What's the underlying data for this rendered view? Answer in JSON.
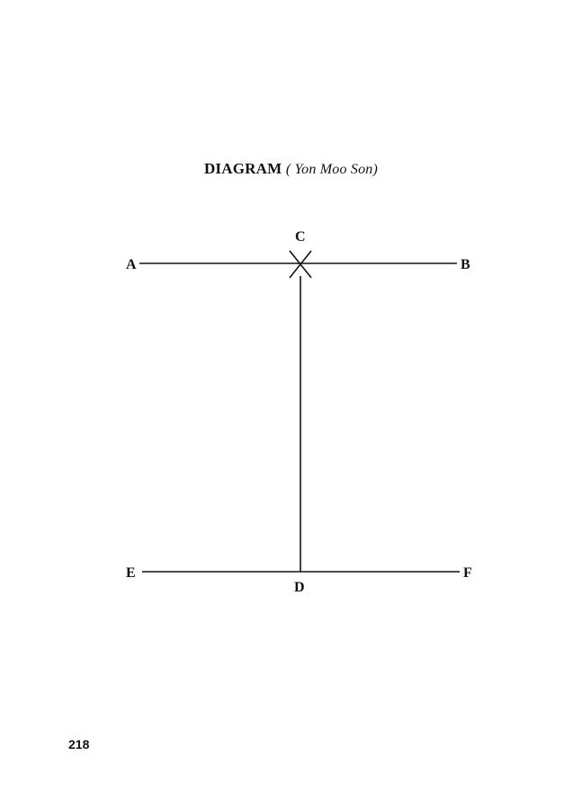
{
  "page": {
    "title_main": "DIAGRAM",
    "title_sub": "( Yon Moo   Son)",
    "page_number": "218"
  },
  "diagram": {
    "points": {
      "a": "A",
      "b": "B",
      "c": "C",
      "d": "D",
      "e": "E",
      "f": "F"
    },
    "line_color": "#111111"
  }
}
